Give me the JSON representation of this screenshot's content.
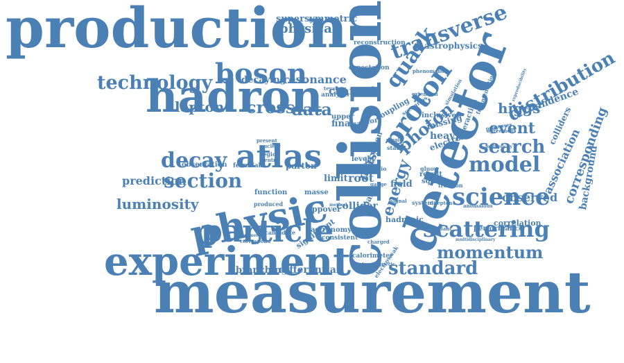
{
  "accent_color": "#4a80b4",
  "background_color": "#ffffff",
  "words": [
    "measurement",
    "collision",
    "detector",
    "production",
    "hadron",
    "physic",
    "experiment",
    "particle",
    "atlas",
    "boson",
    "technology",
    "scattering",
    "transverse",
    "distribution",
    "model",
    "science",
    "search",
    "event",
    "higgs",
    "standard",
    "momentum",
    "decay",
    "section",
    "proton",
    "quark",
    "photon",
    "energy",
    "lepton",
    "cross",
    "data",
    "luminosity",
    "prediction",
    "confidence",
    "corresponding",
    "background",
    "association",
    "observed",
    "colliders",
    "supersymmetric",
    "physical",
    "resonance",
    "decaying",
    "astrophysics",
    "reconstruction",
    "expectation",
    "channel",
    "analysis",
    "tevatron",
    "branching",
    "differential",
    "calorimeter",
    "electromagnetic",
    "collider",
    "limit",
    "root",
    "field",
    "function",
    "masse",
    "ppover",
    "astronomy",
    "consistent",
    "hadronic",
    "correlation",
    "performance",
    "squark",
    "electron",
    "heavy",
    "missing",
    "inclusive",
    "observation",
    "fermilab",
    "parton",
    "produced",
    "significant",
    "correspond",
    "candidate",
    "parameter",
    "final",
    "upper",
    "mass",
    "jet",
    "pair",
    "result",
    "agreement",
    "multiplicity",
    "processes",
    "interaction",
    "phenomenon",
    "fraction",
    "anomalous",
    "invariant",
    "electroweak",
    "system",
    "multidisciplinary",
    "dilepton",
    "extension",
    "simulation",
    "vector",
    "present",
    "region",
    "centre",
    "nuclear",
    "level",
    "ratio",
    "state",
    "single",
    "gluon",
    "gauge",
    "signal",
    "charged",
    "method",
    "muon",
    "coupling",
    "scenarios",
    "fragmentation",
    "reproducibility"
  ]
}
